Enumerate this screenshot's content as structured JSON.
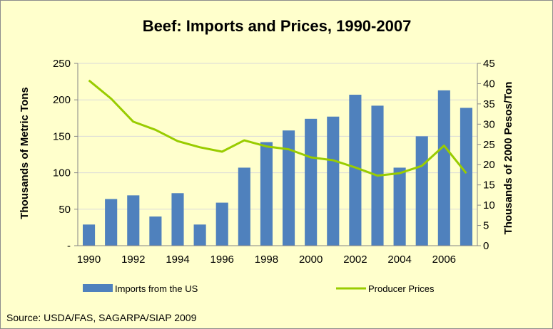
{
  "colors": {
    "background": "#ffffcc",
    "bar": "#4f81bd",
    "line": "#99cc00",
    "gridline": "#d9d9d9",
    "axis": "#868686"
  },
  "chart_data": {
    "type": "bar",
    "title": "Beef: Imports and Prices, 1990-2007",
    "ylabel": "Thousands of Metric Tons",
    "y2label": "Thousands of 2000 Pesos/Ton",
    "xlabel": "",
    "ylim": [
      0,
      250
    ],
    "y2lim": [
      0,
      45
    ],
    "yticks": [
      "-",
      "50",
      "100",
      "150",
      "200",
      "250"
    ],
    "y2ticks": [
      "0",
      "5",
      "10",
      "15",
      "20",
      "25",
      "30",
      "35",
      "40",
      "45"
    ],
    "categories": [
      "1990",
      "1991",
      "1992",
      "1993",
      "1994",
      "1995",
      "1996",
      "1997",
      "1998",
      "1999",
      "2000",
      "2001",
      "2002",
      "2003",
      "2004",
      "2005",
      "2006",
      "2007"
    ],
    "xtick_labels": [
      "1990",
      "",
      "1992",
      "",
      "1994",
      "",
      "1996",
      "",
      "1998",
      "",
      "2000",
      "",
      "2002",
      "",
      "2004",
      "",
      "2006",
      ""
    ],
    "grid": true,
    "legend_position": "bottom",
    "series": [
      {
        "name": "Imports from the US",
        "type": "bar",
        "axis": "left",
        "values": [
          29,
          64,
          69,
          40,
          72,
          29,
          59,
          107,
          142,
          158,
          174,
          177,
          207,
          192,
          107,
          150,
          213,
          189
        ]
      },
      {
        "name": "Producer Prices",
        "type": "line",
        "axis": "right",
        "values": [
          40.8,
          36.3,
          30.6,
          28.6,
          25.8,
          24.3,
          23.2,
          26.0,
          24.5,
          23.8,
          21.8,
          21.1,
          19.3,
          17.3,
          17.9,
          19.7,
          24.7,
          17.9
        ]
      }
    ]
  },
  "source": "Source: USDA/FAS, SAGARPA/SIAP 2009"
}
